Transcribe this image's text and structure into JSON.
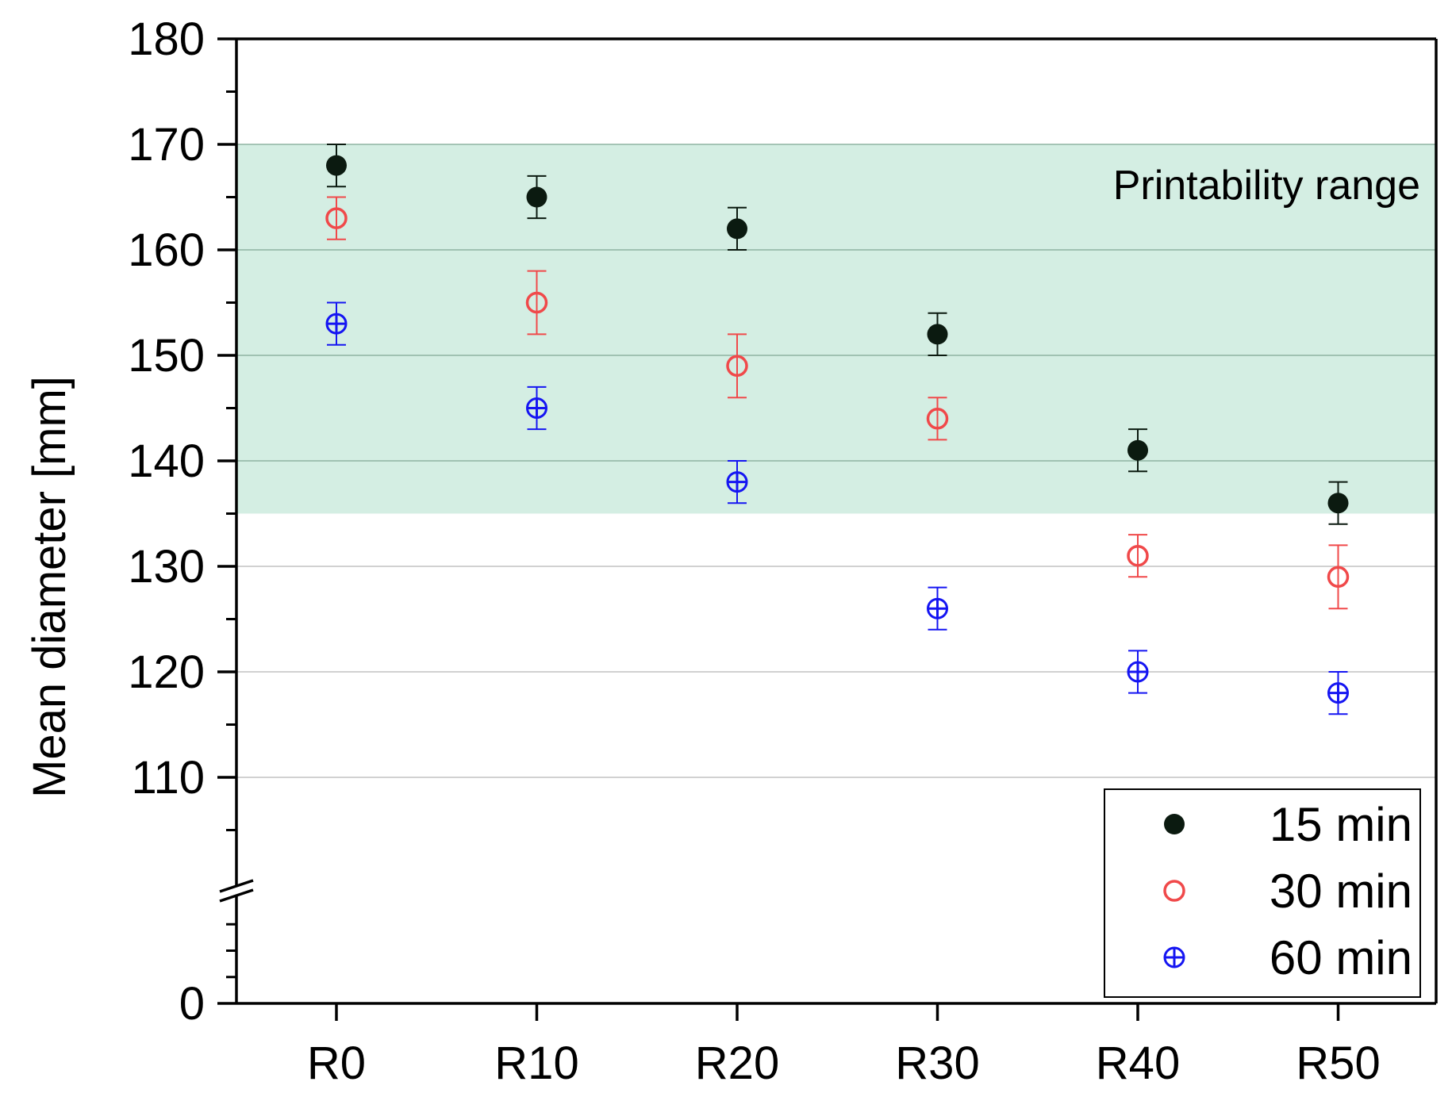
{
  "chart_data": {
    "type": "scatter",
    "title": "",
    "xlabel": "",
    "ylabel": "Mean diameter [mm]",
    "categories": [
      "R0",
      "R10",
      "R20",
      "R30",
      "R40",
      "R50"
    ],
    "ylim": [
      0,
      180
    ],
    "axis_break": [
      100,
      110
    ],
    "yticks": [
      0,
      110,
      120,
      130,
      140,
      150,
      160,
      170,
      180
    ],
    "yminor_step": 5,
    "grid": true,
    "shaded_band": {
      "label": "Printability range",
      "min": 135,
      "max": 170,
      "color": "#d4eee3"
    },
    "legend_position": "bottom-right",
    "series": [
      {
        "name": "15 min",
        "marker": "filled-circle",
        "color": "#0b1a10",
        "values": [
          168,
          165,
          162,
          152,
          141,
          136
        ],
        "errors": [
          2,
          2,
          2,
          2,
          2,
          2
        ]
      },
      {
        "name": "30 min",
        "marker": "open-circle",
        "color": "#f0494a",
        "values": [
          163,
          155,
          149,
          144,
          131,
          129
        ],
        "errors": [
          2,
          3,
          3,
          2,
          2,
          3
        ]
      },
      {
        "name": "60 min",
        "marker": "crossed-circle",
        "color": "#1515f2",
        "values": [
          153,
          145,
          138,
          126,
          120,
          118
        ],
        "errors": [
          2,
          2,
          2,
          2,
          2,
          2
        ]
      }
    ]
  }
}
